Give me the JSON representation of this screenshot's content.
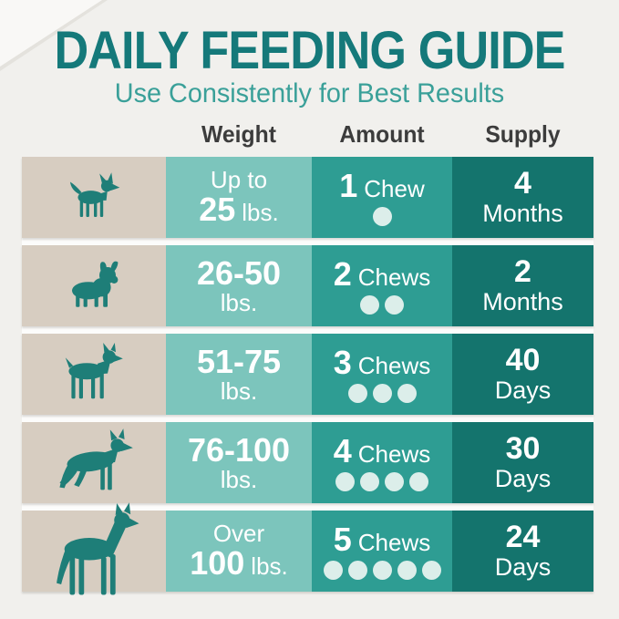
{
  "header": {
    "title": "DAILY FEEDING GUIDE",
    "subtitle": "Use Consistently for Best Results"
  },
  "columns": {
    "weight": "Weight",
    "amount": "Amount",
    "supply": "Supply"
  },
  "rows": [
    {
      "dog_icon": "chihuahua-icon",
      "weight": {
        "prefix": "Up to",
        "value": "25",
        "unit": "lbs."
      },
      "amount": {
        "count": "1",
        "label": "Chew",
        "dots": 1
      },
      "supply": {
        "value": "4",
        "unit": "Months"
      }
    },
    {
      "dog_icon": "french-bulldog-icon",
      "weight": {
        "value": "26-50",
        "unit": "lbs."
      },
      "amount": {
        "count": "2",
        "label": "Chews",
        "dots": 2
      },
      "supply": {
        "value": "2",
        "unit": "Months"
      }
    },
    {
      "dog_icon": "boxer-icon",
      "weight": {
        "value": "51-75",
        "unit": "lbs."
      },
      "amount": {
        "count": "3",
        "label": "Chews",
        "dots": 3
      },
      "supply": {
        "value": "40",
        "unit": "Days"
      }
    },
    {
      "dog_icon": "german-shepherd-icon",
      "weight": {
        "value": "76-100",
        "unit": "lbs."
      },
      "amount": {
        "count": "4",
        "label": "Chews",
        "dots": 4
      },
      "supply": {
        "value": "30",
        "unit": "Days"
      }
    },
    {
      "dog_icon": "great-dane-icon",
      "weight": {
        "prefix": "Over",
        "value": "100",
        "unit": "lbs."
      },
      "amount": {
        "count": "5",
        "label": "Chews",
        "dots": 5
      },
      "supply": {
        "value": "24",
        "unit": "Days"
      }
    }
  ],
  "colors": {
    "background": "#f1f0ed",
    "title": "#15797a",
    "subtitle": "#3aa099",
    "header_text": "#3c3c3c",
    "dog_cell": "#d7cdc1",
    "weight_cell": "#7cc5bc",
    "amount_cell": "#2e9d93",
    "supply_cell": "#14746d",
    "dog_silhouette": "#1e7e78",
    "chew_dot": "#dceeea"
  },
  "chart_data": {
    "type": "table",
    "title": "DAILY FEEDING GUIDE",
    "subtitle": "Use Consistently for Best Results",
    "columns": [
      "Weight",
      "Amount",
      "Supply"
    ],
    "rows": [
      [
        "Up to 25 lbs.",
        "1 Chew",
        "4 Months"
      ],
      [
        "26-50 lbs.",
        "2 Chews",
        "2 Months"
      ],
      [
        "51-75 lbs.",
        "3 Chews",
        "40 Days"
      ],
      [
        "76-100 lbs.",
        "4 Chews",
        "30 Days"
      ],
      [
        "Over 100 lbs.",
        "5 Chews",
        "24 Days"
      ]
    ],
    "dot_counts": [
      1,
      2,
      3,
      4,
      5
    ]
  }
}
